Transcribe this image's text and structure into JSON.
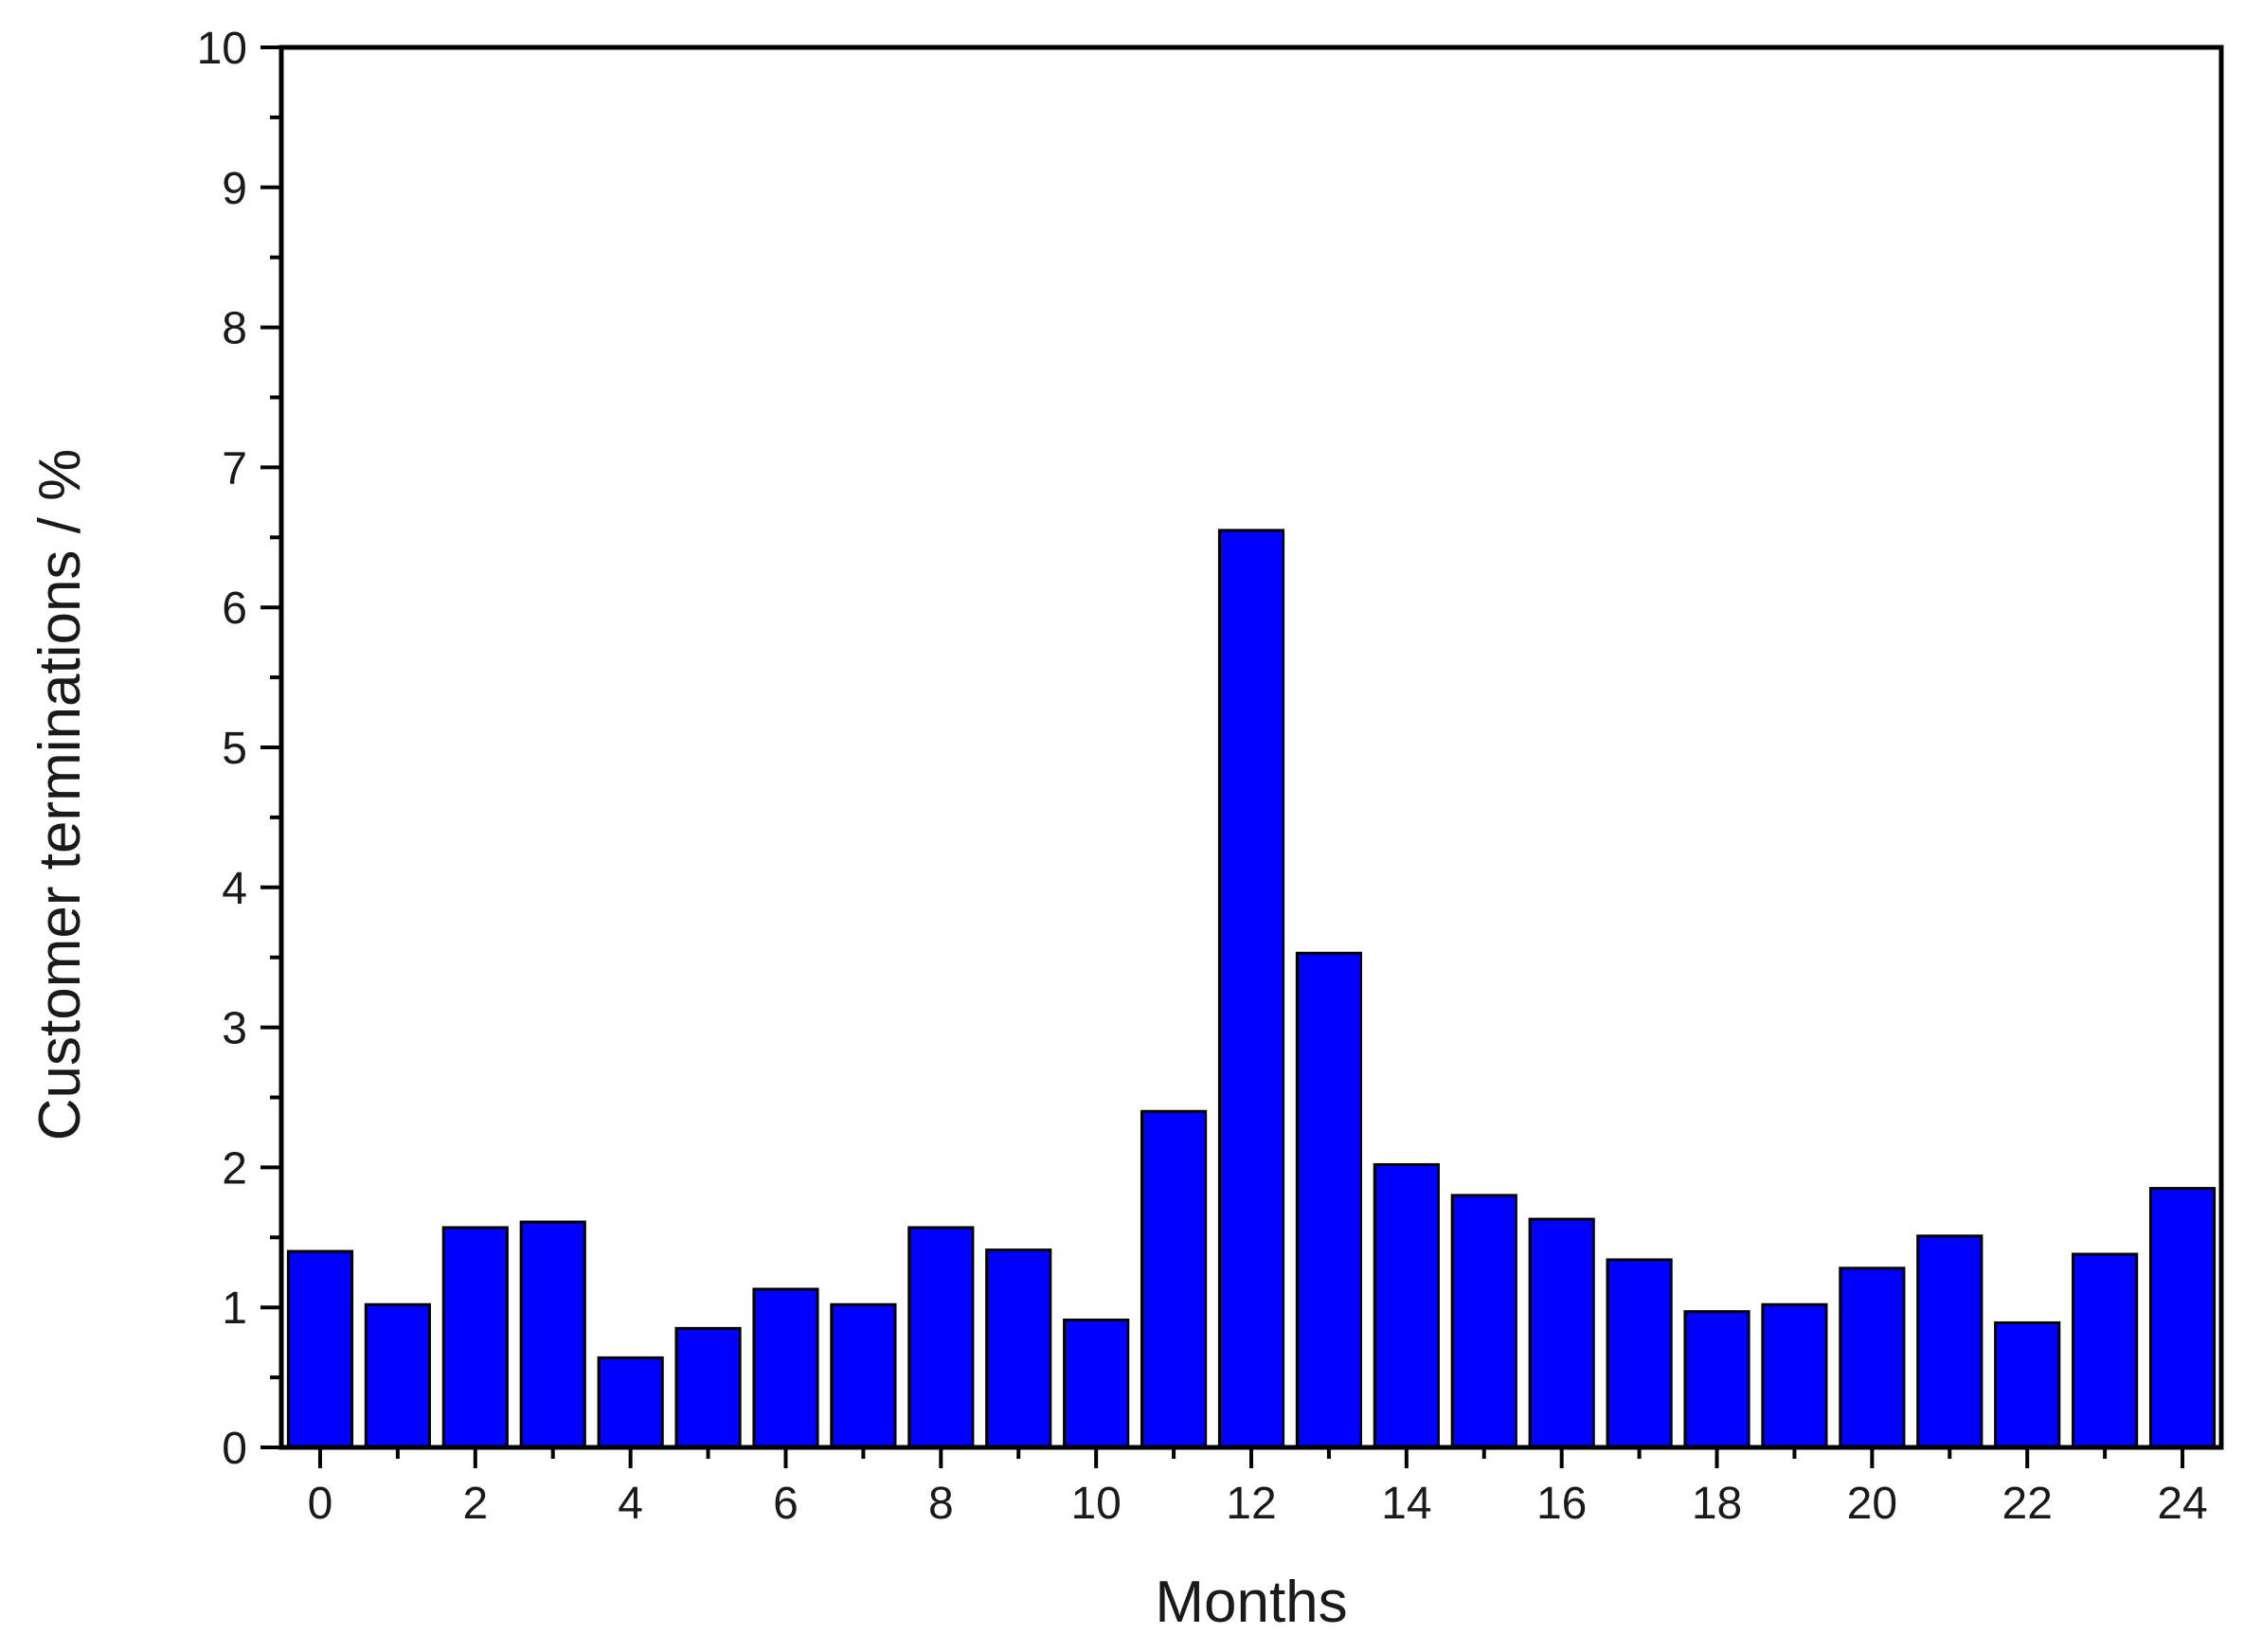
{
  "chart_data": {
    "type": "bar",
    "title": "",
    "xlabel": "Months",
    "ylabel": "Customer terminations / %",
    "x": [
      0,
      1,
      2,
      3,
      4,
      5,
      6,
      7,
      8,
      9,
      10,
      11,
      12,
      13,
      14,
      15,
      16,
      17,
      18,
      19,
      20,
      21,
      22,
      23,
      24
    ],
    "values": [
      1.4,
      1.02,
      1.57,
      1.61,
      0.64,
      0.85,
      1.13,
      1.02,
      1.57,
      1.41,
      0.91,
      2.4,
      6.55,
      3.53,
      2.02,
      1.8,
      1.63,
      1.34,
      0.97,
      1.02,
      1.28,
      1.51,
      0.89,
      1.38,
      1.85
    ],
    "xlim": [
      -0.5,
      24.5
    ],
    "ylim": [
      0,
      10
    ],
    "x_ticks": [
      0,
      2,
      4,
      6,
      8,
      10,
      12,
      14,
      16,
      18,
      20,
      22,
      24
    ],
    "x_minor_ticks": [
      1,
      3,
      5,
      7,
      9,
      11,
      13,
      15,
      17,
      19,
      21,
      23
    ],
    "y_ticks": [
      0,
      1,
      2,
      3,
      4,
      5,
      6,
      7,
      8,
      9,
      10
    ],
    "y_minor_ticks": [
      0.5,
      1.5,
      2.5,
      3.5,
      4.5,
      5.5,
      6.5,
      7.5,
      8.5,
      9.5
    ],
    "bar_color": "#0000ff",
    "edge_color": "#000000",
    "grid": false,
    "legend": "none"
  }
}
